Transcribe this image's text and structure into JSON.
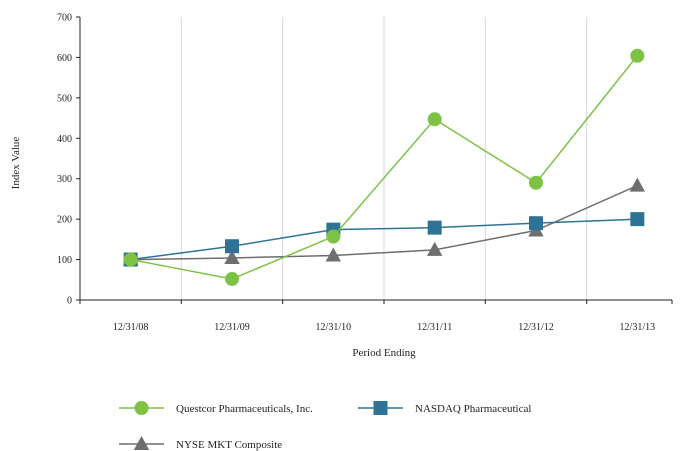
{
  "chart_data": {
    "type": "line",
    "title": "",
    "xlabel": "Period Ending",
    "ylabel": "Index Value",
    "categories": [
      "12/31/08",
      "12/31/09",
      "12/31/10",
      "12/31/11",
      "12/31/12",
      "12/31/13"
    ],
    "ylim": [
      0,
      700
    ],
    "yticks": [
      0,
      100,
      200,
      300,
      400,
      500,
      600,
      700
    ],
    "grid": "vertical",
    "legend_position": "bottom",
    "series": [
      {
        "name": "Questcor Pharmaceuticals, Inc.",
        "color": "#7dc242",
        "marker": "circle",
        "values": [
          100,
          52,
          157,
          447,
          290,
          604
        ]
      },
      {
        "name": "NASDAQ Pharmaceutical",
        "color": "#2e7396",
        "marker": "square",
        "values": [
          100,
          133,
          174,
          179,
          190,
          200
        ]
      },
      {
        "name": "NYSE MKT Composite",
        "color": "#6d6e70",
        "marker": "triangle",
        "values": [
          100,
          104,
          110,
          124,
          172,
          283
        ]
      }
    ]
  }
}
